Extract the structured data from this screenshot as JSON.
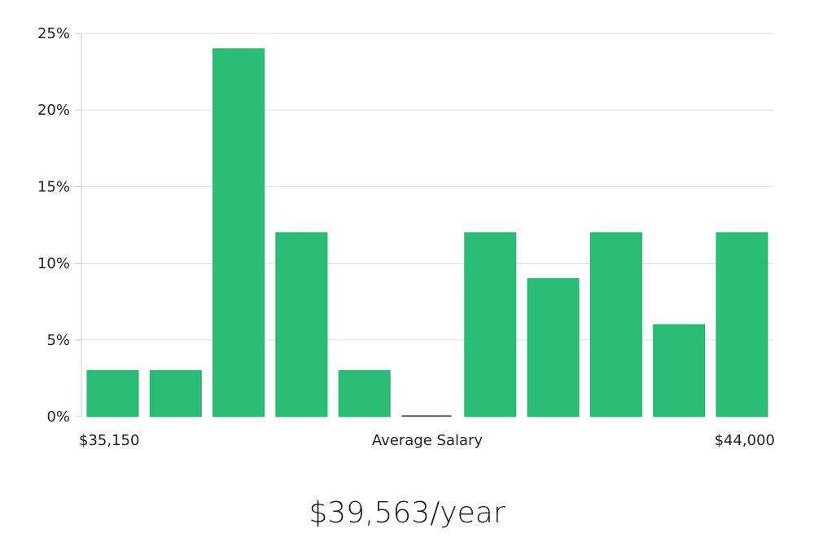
{
  "chart_data": {
    "type": "bar",
    "xlabel": "Average Salary",
    "x_range_labels": {
      "min": "$35,150",
      "max": "$44,000"
    },
    "yticks": [
      "0%",
      "5%",
      "10%",
      "15%",
      "20%",
      "25%"
    ],
    "ylim": [
      0,
      25
    ],
    "values": [
      3,
      3,
      24,
      12,
      3,
      0,
      12,
      9,
      12,
      6,
      12
    ],
    "highlight_index": 5,
    "grid": true,
    "colors": {
      "bar": "#2abd75",
      "bar_edge": "#22b06a",
      "highlight": "#1a237e",
      "grid": "#dddddd",
      "axis": "#cccccc"
    }
  },
  "summary": {
    "salary": "$39,563/year"
  }
}
